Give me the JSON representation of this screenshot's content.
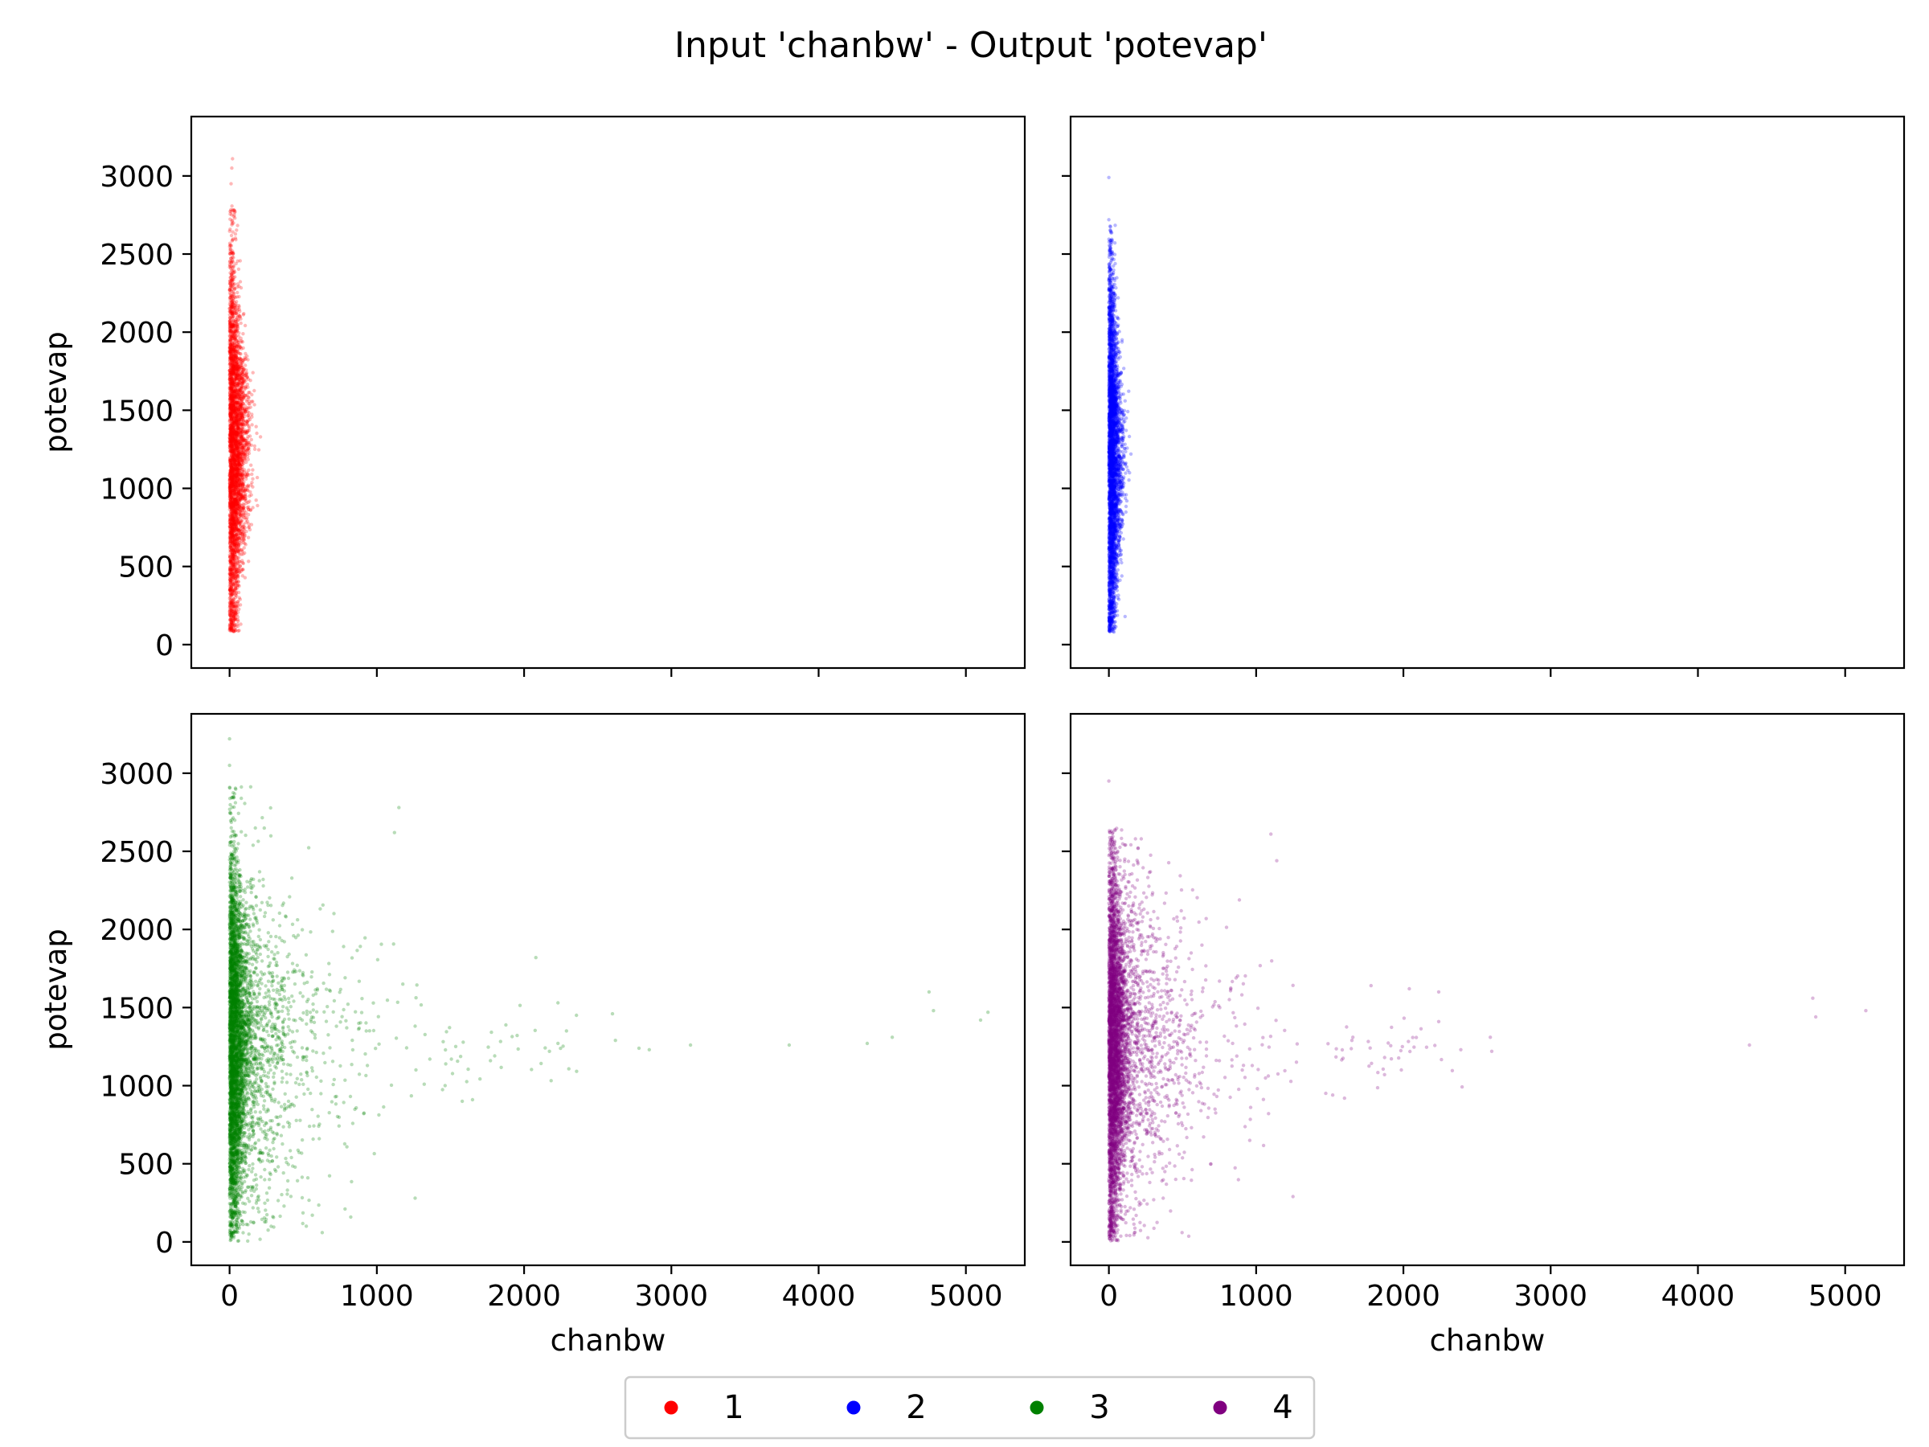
{
  "figure": {
    "title": "Input 'chanbw' - Output 'potevap'"
  },
  "chart_data": [
    {
      "type": "scatter",
      "panel": "top-left",
      "series_name": "1",
      "color": "#ff0000",
      "xlabel": "",
      "ylabel": "potevap",
      "xlim": [
        -260,
        5400
      ],
      "ylim": [
        -150,
        3380
      ],
      "xticks": [
        0,
        1000,
        2000,
        3000,
        4000,
        5000
      ],
      "yticks": [
        0,
        500,
        1000,
        1500,
        2000,
        2500,
        3000
      ],
      "x_tick_labels_visible": false,
      "y_tick_labels_visible": true,
      "distribution": {
        "x_range": [
          0,
          220
        ],
        "y_range": [
          75,
          3110
        ],
        "y_mode": 1250,
        "outliers": [
          [
            20,
            3110
          ],
          [
            15,
            3050
          ],
          [
            10,
            2950
          ],
          [
            190,
            890
          ],
          [
            210,
            1330
          ]
        ]
      }
    },
    {
      "type": "scatter",
      "panel": "top-right",
      "series_name": "2",
      "color": "#0000ff",
      "xlabel": "",
      "ylabel": "",
      "xlim": [
        -260,
        5400
      ],
      "ylim": [
        -150,
        3380
      ],
      "xticks": [
        0,
        1000,
        2000,
        3000,
        4000,
        5000
      ],
      "yticks": [
        0,
        500,
        1000,
        1500,
        2000,
        2500,
        3000
      ],
      "x_tick_labels_visible": false,
      "y_tick_labels_visible": false,
      "distribution": {
        "x_range": [
          0,
          160
        ],
        "y_range": [
          75,
          2990
        ],
        "y_mode": 1200,
        "outliers": [
          [
            0,
            2990
          ],
          [
            0,
            2720
          ],
          [
            150,
            1220
          ],
          [
            140,
            1100
          ],
          [
            110,
            180
          ]
        ]
      }
    },
    {
      "type": "scatter",
      "panel": "bottom-left",
      "series_name": "3",
      "color": "#008000",
      "xlabel": "chanbw",
      "ylabel": "potevap",
      "xlim": [
        -260,
        5400
      ],
      "ylim": [
        -150,
        3380
      ],
      "xticks": [
        0,
        1000,
        2000,
        3000,
        4000,
        5000
      ],
      "yticks": [
        0,
        500,
        1000,
        1500,
        2000,
        2500,
        3000
      ],
      "x_tick_labels_visible": true,
      "y_tick_labels_visible": true,
      "distribution": {
        "x_range": [
          0,
          5150
        ],
        "y_range": [
          0,
          3220
        ],
        "y_mode": 1250,
        "outliers": [
          [
            0,
            3220
          ],
          [
            0,
            3050
          ],
          [
            1150,
            2780
          ],
          [
            1120,
            2620
          ],
          [
            2080,
            1820
          ],
          [
            2230,
            1530
          ],
          [
            2600,
            1460
          ],
          [
            2620,
            1290
          ],
          [
            2780,
            1240
          ],
          [
            2850,
            1230
          ],
          [
            3130,
            1260
          ],
          [
            3800,
            1260
          ],
          [
            4330,
            1270
          ],
          [
            4500,
            1310
          ],
          [
            4750,
            1600
          ],
          [
            4780,
            1480
          ],
          [
            5100,
            1420
          ],
          [
            5150,
            1470
          ],
          [
            1260,
            280
          ],
          [
            1650,
            910
          ],
          [
            1580,
            900
          ]
        ]
      }
    },
    {
      "type": "scatter",
      "panel": "bottom-right",
      "series_name": "4",
      "color": "#800080",
      "xlabel": "chanbw",
      "ylabel": "",
      "xlim": [
        -260,
        5400
      ],
      "ylim": [
        -150,
        3380
      ],
      "xticks": [
        0,
        1000,
        2000,
        3000,
        4000,
        5000
      ],
      "yticks": [
        0,
        500,
        1000,
        1500,
        2000,
        2500,
        3000
      ],
      "x_tick_labels_visible": true,
      "y_tick_labels_visible": false,
      "distribution": {
        "x_range": [
          0,
          5150
        ],
        "y_range": [
          0,
          2950
        ],
        "y_mode": 1250,
        "outliers": [
          [
            0,
            2950
          ],
          [
            1100,
            2610
          ],
          [
            1140,
            2440
          ],
          [
            1780,
            1640
          ],
          [
            2040,
            1620
          ],
          [
            2240,
            1600
          ],
          [
            2240,
            1410
          ],
          [
            2390,
            1230
          ],
          [
            2590,
            1310
          ],
          [
            2600,
            1220
          ],
          [
            4350,
            1260
          ],
          [
            4780,
            1560
          ],
          [
            4800,
            1440
          ],
          [
            5140,
            1480
          ],
          [
            1250,
            290
          ],
          [
            1600,
            920
          ],
          [
            1520,
            940
          ]
        ]
      }
    }
  ],
  "legend": {
    "placement": "bottom-center",
    "entries": [
      {
        "label": "1",
        "color": "#ff0000"
      },
      {
        "label": "2",
        "color": "#0000ff"
      },
      {
        "label": "3",
        "color": "#008000"
      },
      {
        "label": "4",
        "color": "#800080"
      }
    ]
  }
}
